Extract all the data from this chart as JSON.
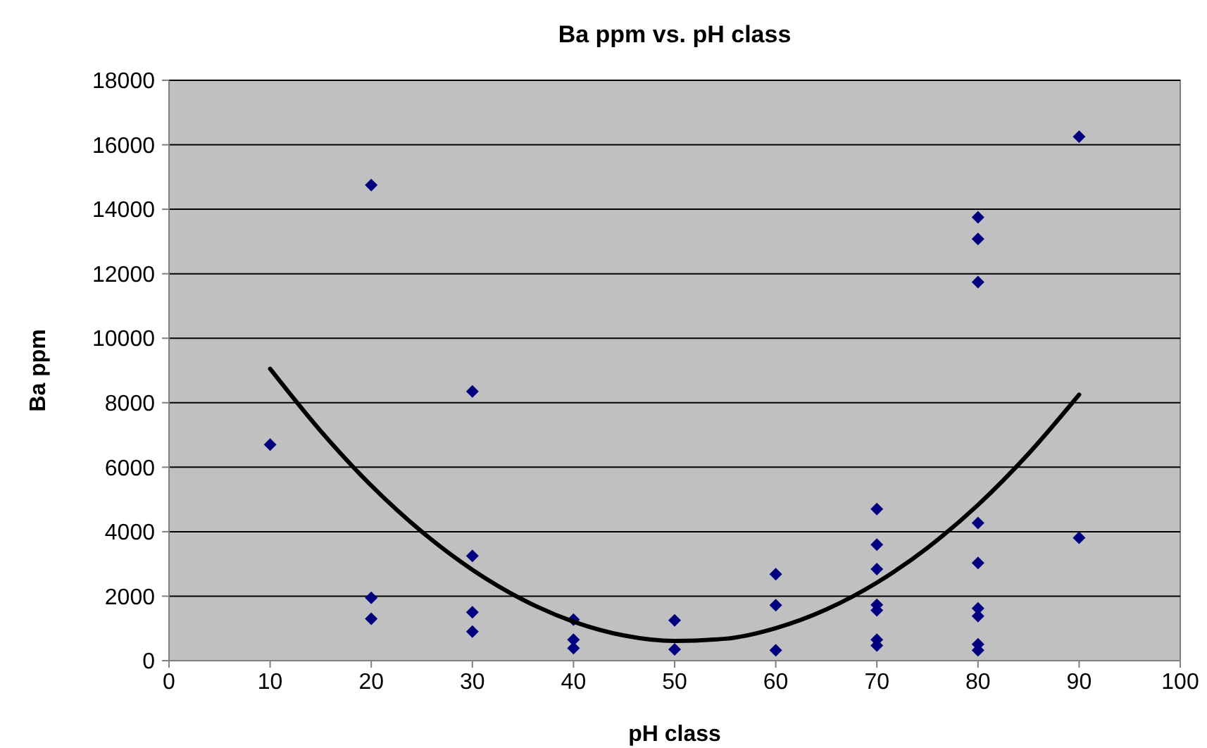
{
  "chart_data": {
    "type": "scatter",
    "title": "Ba ppm vs. pH class",
    "xlabel": "pH class",
    "ylabel": "Ba ppm",
    "xlim": [
      0,
      100
    ],
    "xticks": [
      0,
      10,
      20,
      30,
      40,
      50,
      60,
      70,
      80,
      90,
      100
    ],
    "ylim": [
      0,
      18000
    ],
    "yticks": [
      0,
      2000,
      4000,
      6000,
      8000,
      10000,
      12000,
      14000,
      16000,
      18000
    ],
    "grid": "y",
    "series": [
      {
        "color": "#000080",
        "marker": "diamond",
        "x": [
          10,
          20,
          20,
          20,
          30,
          30,
          30,
          30,
          40,
          40,
          40,
          50,
          50,
          60,
          60,
          60,
          70,
          70,
          70,
          70,
          70,
          70,
          70,
          80,
          80,
          80,
          80,
          80,
          80,
          80,
          80,
          80,
          90,
          90
        ],
        "values": [
          6700,
          14750,
          1950,
          1300,
          8350,
          3250,
          1500,
          900,
          1270,
          650,
          390,
          1250,
          350,
          2680,
          1720,
          320,
          4700,
          3600,
          2840,
          1730,
          1560,
          650,
          470,
          13750,
          13080,
          11740,
          4270,
          3030,
          1620,
          1380,
          510,
          320,
          16250,
          3810
        ]
      },
      {
        "type": "line",
        "color": "#000000",
        "marker": "none",
        "line_style": "solid",
        "x": [
          10,
          15,
          20,
          25,
          30,
          35,
          40,
          45,
          50,
          55,
          60,
          65,
          70,
          75,
          80,
          85,
          90
        ],
        "values": [
          9050,
          7120,
          5430,
          4000,
          2820,
          1890,
          1210,
          780,
          610,
          680,
          1010,
          1590,
          2420,
          3500,
          4830,
          6420,
          8250
        ]
      }
    ]
  }
}
